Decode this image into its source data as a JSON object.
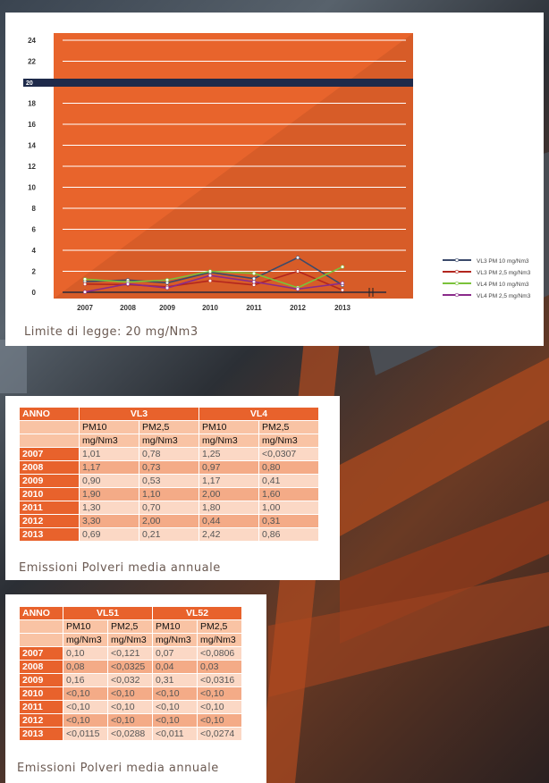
{
  "chart_data": {
    "type": "line",
    "ylim": [
      0,
      24
    ],
    "y_ticks": [
      "0",
      "2",
      "4",
      "6",
      "8",
      "10",
      "12",
      "14",
      "16",
      "18",
      "20",
      "22",
      "24"
    ],
    "categories": [
      "2007",
      "2008",
      "2009",
      "2010",
      "2011",
      "2012",
      "2013"
    ],
    "limit_line": {
      "value": 20,
      "label": "20"
    },
    "series": [
      {
        "name": "VL3 PM 10 mg/Nm3",
        "color": "#3b4a6b",
        "values": [
          1.01,
          1.17,
          0.9,
          1.9,
          1.3,
          3.3,
          0.69
        ]
      },
      {
        "name": "VL3 PM 2,5 mg/Nm3",
        "color": "#b3261e",
        "values": [
          0.78,
          0.73,
          0.53,
          1.1,
          0.7,
          2.0,
          0.21
        ]
      },
      {
        "name": "VL4 PM 10 mg/Nm3",
        "color": "#7ac23a",
        "values": [
          1.25,
          0.97,
          1.17,
          2.0,
          1.8,
          0.44,
          2.42
        ]
      },
      {
        "name": "VL4 PM 2,5 mg/Nm3",
        "color": "#8a2a8a",
        "values": [
          0.03,
          0.8,
          0.41,
          1.6,
          1.0,
          0.31,
          0.86
        ]
      }
    ],
    "colors": {
      "plot_bg": "#e8642c",
      "limit_band": "#1e2a4a"
    }
  },
  "chart_caption": "Limite di legge: 20 mg/Nm3",
  "table1": {
    "anno": "ANNO",
    "groups": [
      "VL3",
      "VL4"
    ],
    "pm": [
      "PM10",
      "PM2,5",
      "PM10",
      "PM2,5"
    ],
    "units": [
      "mg/Nm3",
      "mg/Nm3",
      "mg/Nm3",
      "mg/Nm3"
    ],
    "rows": [
      {
        "year": "2007",
        "v": [
          "1,01",
          "0,78",
          "1,25",
          "<0,0307"
        ]
      },
      {
        "year": "2008",
        "v": [
          "1,17",
          "0,73",
          "0,97",
          "0,80"
        ]
      },
      {
        "year": "2009",
        "v": [
          "0,90",
          "0,53",
          "1,17",
          "0,41"
        ]
      },
      {
        "year": "2010",
        "v": [
          "1,90",
          "1,10",
          "2,00",
          "1,60"
        ]
      },
      {
        "year": "2011",
        "v": [
          "1,30",
          "0,70",
          "1,80",
          "1,00"
        ]
      },
      {
        "year": "2012",
        "v": [
          "3,30",
          "2,00",
          "0,44",
          "0,31"
        ]
      },
      {
        "year": "2013",
        "v": [
          "0,69",
          "0,21",
          "2,42",
          "0,86"
        ]
      }
    ],
    "caption": "Emissioni Polveri media annuale"
  },
  "table2": {
    "anno": "ANNO",
    "groups": [
      "VL51",
      "VL52"
    ],
    "pm": [
      "PM10",
      "PM2,5",
      "PM10",
      "PM2,5"
    ],
    "units": [
      "mg/Nm3",
      "mg/Nm3",
      "mg/Nm3",
      "mg/Nm3"
    ],
    "rows": [
      {
        "year": "2007",
        "v": [
          "0,10",
          "<0,121",
          "0,07",
          "<0,0806"
        ]
      },
      {
        "year": "2008",
        "v": [
          "0,08",
          "<0,0325",
          "0,04",
          "0,03"
        ]
      },
      {
        "year": "2009",
        "v": [
          "0,16",
          "<0,032",
          "0,31",
          "<0,0316"
        ]
      },
      {
        "year": "2010",
        "v": [
          "<0,10",
          "<0,10",
          "<0,10",
          "<0,10"
        ]
      },
      {
        "year": "2011",
        "v": [
          "<0,10",
          "<0,10",
          "<0,10",
          "<0,10"
        ]
      },
      {
        "year": "2012",
        "v": [
          "<0,10",
          "<0,10",
          "<0,10",
          "<0,10"
        ]
      },
      {
        "year": "2013",
        "v": [
          "<0,0115",
          "<0,0288",
          "<0,011",
          "<0,0274"
        ]
      }
    ],
    "caption": "Emissioni Polveri media annuale"
  }
}
